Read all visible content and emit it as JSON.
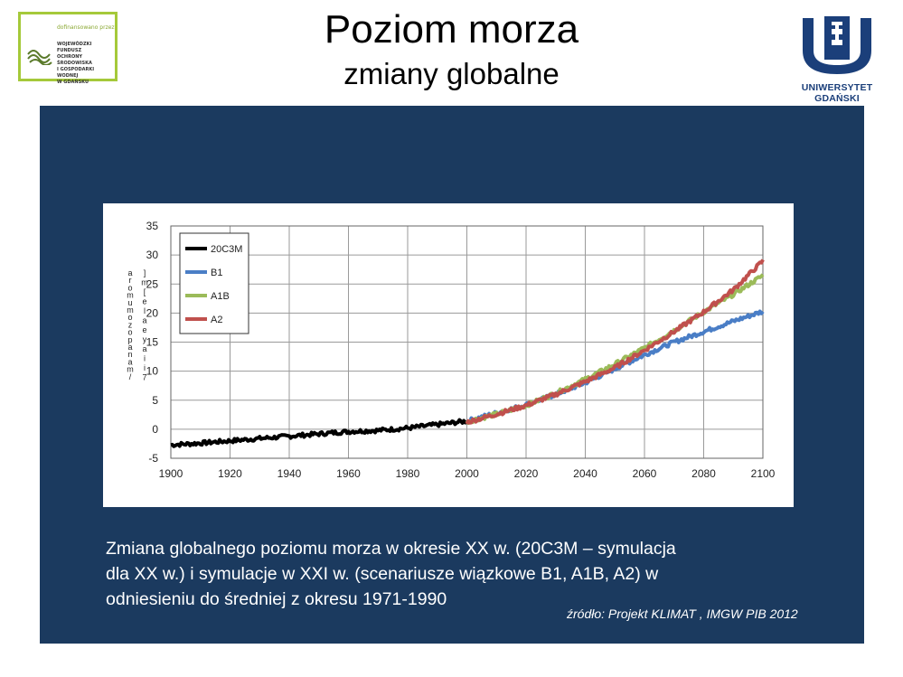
{
  "logo_left": {
    "top": "dofinansowano przez",
    "lines": [
      "WOJEWÓDZKI FUNDUSZ",
      "OCHRONY ŚRODOWISKA",
      "I GOSPODARKI WODNEJ",
      "W GDAŃSKU"
    ]
  },
  "title": "Poziom morza",
  "subtitle": "zmiany globalne",
  "logo_right": {
    "name": "UNIWERSYTET GDAŃSKI"
  },
  "caption_lines": [
    "Zmiana globalnego poziomu morza w okresie XX w. (20C3M – symulacja",
    "dla XX w.) i symulacje w XXI w. (scenariusze wiązkowe B1, A1B, A2) w",
    "odniesieniu do średniej z okresu 1971-1990"
  ],
  "source": "źródło: Projekt KLIMAT , IMGW PIB 2012",
  "colors": {
    "panel": "#1b3a5f",
    "c20C3M": "#000000",
    "B1": "#4a7ec6",
    "A1B": "#9bbb59",
    "A2": "#c0504d"
  },
  "chart_data": {
    "type": "line",
    "title": "",
    "xlabel": "",
    "ylabel": "",
    "xlim": [
      1900,
      2100
    ],
    "ylim": [
      -5,
      35
    ],
    "x_ticks": [
      "1900",
      "1920",
      "1940",
      "1960",
      "1980",
      "2000",
      "2020",
      "2040",
      "2060",
      "2080",
      "2100"
    ],
    "y_ticks": [
      "-5",
      "0",
      "5",
      "10",
      "15",
      "20",
      "25",
      "30",
      "35"
    ],
    "grid": true,
    "legend": "top-left",
    "series": [
      {
        "name": "20C3M",
        "color": "#000000",
        "x": [
          1900,
          1910,
          1920,
          1930,
          1940,
          1950,
          1960,
          1970,
          1980,
          1990,
          2000
        ],
        "y": [
          -2.7,
          -2.4,
          -2.0,
          -1.6,
          -1.2,
          -0.8,
          -0.4,
          -0.2,
          0.2,
          0.8,
          1.4
        ]
      },
      {
        "name": "B1",
        "color": "#4a7ec6",
        "x": [
          2000,
          2010,
          2020,
          2030,
          2040,
          2050,
          2060,
          2070,
          2080,
          2090,
          2100
        ],
        "y": [
          1.4,
          2.8,
          4.2,
          6.0,
          8.0,
          10.4,
          12.8,
          15.0,
          16.8,
          18.6,
          20.3
        ]
      },
      {
        "name": "A1B",
        "color": "#9bbb59",
        "x": [
          2000,
          2010,
          2020,
          2030,
          2040,
          2050,
          2060,
          2070,
          2080,
          2090,
          2100
        ],
        "y": [
          1.3,
          2.6,
          4.1,
          6.2,
          8.6,
          11.2,
          14.0,
          17.0,
          20.2,
          23.2,
          26.5
        ]
      },
      {
        "name": "A2",
        "color": "#c0504d",
        "x": [
          2000,
          2010,
          2020,
          2030,
          2040,
          2050,
          2060,
          2070,
          2080,
          2090,
          2100
        ],
        "y": [
          1.2,
          2.6,
          4.1,
          6.0,
          8.2,
          10.6,
          13.6,
          16.8,
          20.2,
          24.0,
          29.0
        ]
      }
    ],
    "ylabel_vertical_text": "a r o m u m o z o p a n a m /",
    "ylabel_vertical_text2": "] m [ e l a e y a i i 7"
  }
}
